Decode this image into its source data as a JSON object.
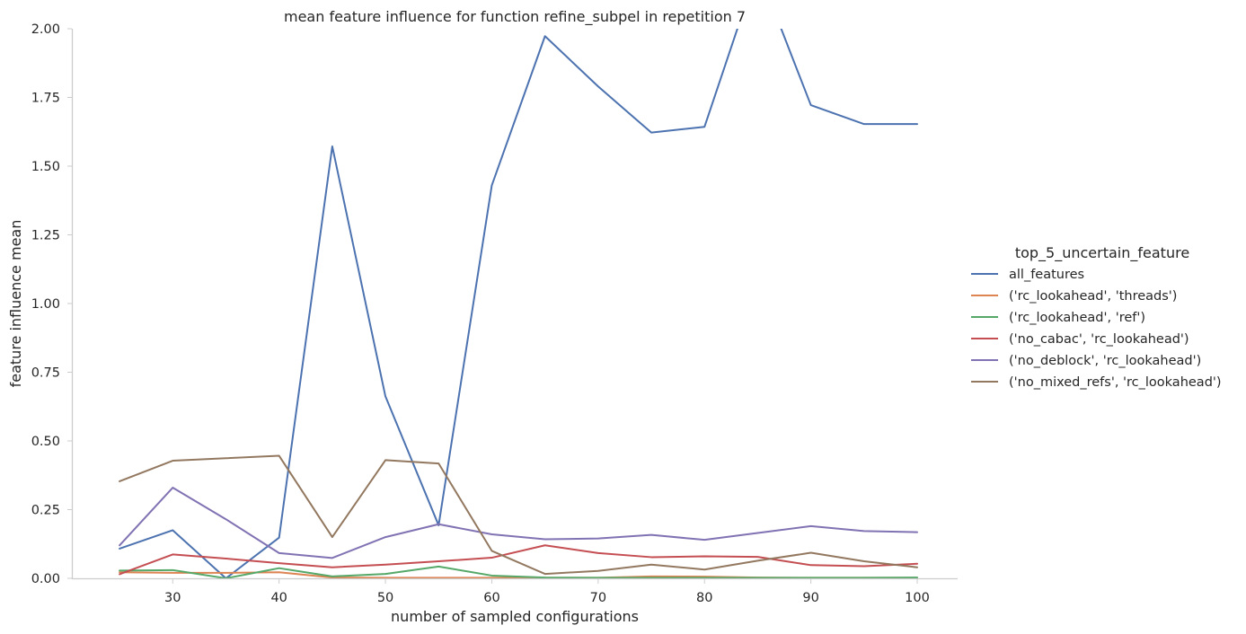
{
  "chart_data": {
    "type": "line",
    "title": "mean feature influence for function refine_subpel in repetition 7",
    "xlabel": "number of sampled configurations",
    "ylabel": "feature influence mean",
    "xlim": [
      20.6,
      103.8
    ],
    "ylim": [
      0,
      2.0
    ],
    "x_ticks": [
      30,
      40,
      50,
      60,
      70,
      80,
      90,
      100
    ],
    "y_ticks": [
      0.0,
      0.25,
      0.5,
      0.75,
      1.0,
      1.25,
      1.5,
      1.75,
      2.0
    ],
    "x_tick_labels": [
      "30",
      "40",
      "50",
      "60",
      "70",
      "80",
      "90",
      "100"
    ],
    "y_tick_labels": [
      "0.00",
      "0.25",
      "0.50",
      "0.75",
      "1.00",
      "1.25",
      "1.50",
      "1.75",
      "2.00"
    ],
    "grid": false,
    "legend": {
      "title": "top_5_uncertain_feature",
      "placement": "outside-right"
    },
    "x": [
      25,
      30,
      35,
      40,
      45,
      50,
      55,
      60,
      65,
      70,
      75,
      80,
      85,
      90,
      95,
      100
    ],
    "series": [
      {
        "name": "all_features",
        "color": "#4c72b0",
        "values": [
          0.108,
          0.175,
          0.0,
          0.148,
          1.572,
          0.662,
          0.193,
          1.43,
          1.973,
          1.79,
          1.622,
          1.643,
          2.22,
          1.722,
          1.653,
          1.653
        ]
      },
      {
        "name": "('rc_lookahead', 'threads')",
        "color": "#dd8452",
        "values": [
          0.022,
          0.02,
          0.02,
          0.022,
          0.003,
          0.002,
          0.002,
          0.002,
          0.002,
          0.002,
          0.007,
          0.006,
          0.003,
          0.002,
          0.002,
          0.002
        ]
      },
      {
        "name": "('rc_lookahead', 'ref')",
        "color": "#55a868",
        "values": [
          0.028,
          0.03,
          0.0,
          0.037,
          0.007,
          0.016,
          0.043,
          0.01,
          0.003,
          0.002,
          0.002,
          0.002,
          0.002,
          0.002,
          0.002,
          0.003
        ]
      },
      {
        "name": "('no_cabac', 'rc_lookahead')",
        "color": "#c44e52",
        "values": [
          0.015,
          0.087,
          0.072,
          0.055,
          0.04,
          0.05,
          0.062,
          0.075,
          0.12,
          0.092,
          0.077,
          0.08,
          0.078,
          0.048,
          0.044,
          0.053
        ]
      },
      {
        "name": "('no_deblock', 'rc_lookahead')",
        "color": "#8172b3",
        "values": [
          0.12,
          0.33,
          0.215,
          0.092,
          0.074,
          0.15,
          0.197,
          0.16,
          0.142,
          0.145,
          0.158,
          0.14,
          0.165,
          0.19,
          0.172,
          0.168
        ]
      },
      {
        "name": "('no_mixed_refs', 'rc_lookahead')",
        "color": "#937860",
        "values": [
          0.353,
          0.428,
          0.437,
          0.446,
          0.15,
          0.43,
          0.418,
          0.1,
          0.016,
          0.027,
          0.05,
          0.032,
          0.064,
          0.093,
          0.062,
          0.04
        ]
      }
    ]
  }
}
